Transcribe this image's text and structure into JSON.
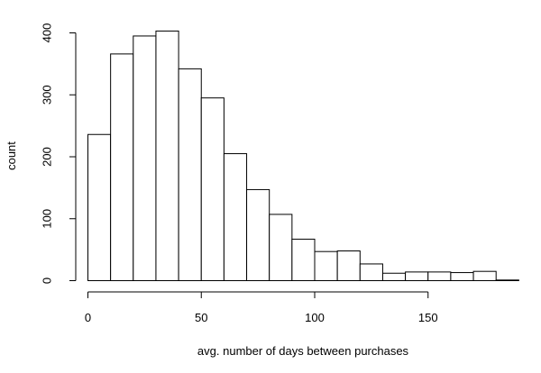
{
  "chart_data": {
    "type": "bar",
    "title": "",
    "xlabel": "avg. number of days between purchases",
    "ylabel": "count",
    "bin_width": 10,
    "bins": [
      {
        "x0": 0,
        "x1": 10,
        "count": 236
      },
      {
        "x0": 10,
        "x1": 20,
        "count": 366
      },
      {
        "x0": 20,
        "x1": 30,
        "count": 395
      },
      {
        "x0": 30,
        "x1": 40,
        "count": 403
      },
      {
        "x0": 40,
        "x1": 50,
        "count": 342
      },
      {
        "x0": 50,
        "x1": 60,
        "count": 295
      },
      {
        "x0": 60,
        "x1": 70,
        "count": 205
      },
      {
        "x0": 70,
        "x1": 80,
        "count": 147
      },
      {
        "x0": 80,
        "x1": 90,
        "count": 107
      },
      {
        "x0": 90,
        "x1": 100,
        "count": 67
      },
      {
        "x0": 100,
        "x1": 110,
        "count": 47
      },
      {
        "x0": 110,
        "x1": 120,
        "count": 48
      },
      {
        "x0": 120,
        "x1": 130,
        "count": 27
      },
      {
        "x0": 130,
        "x1": 140,
        "count": 12
      },
      {
        "x0": 140,
        "x1": 150,
        "count": 14
      },
      {
        "x0": 150,
        "x1": 160,
        "count": 14
      },
      {
        "x0": 160,
        "x1": 170,
        "count": 13
      },
      {
        "x0": 170,
        "x1": 180,
        "count": 15
      },
      {
        "x0": 180,
        "x1": 190,
        "count": 1
      }
    ],
    "xlim": [
      0,
      190
    ],
    "ylim": [
      0,
      400
    ],
    "x_ticks": [
      "0",
      "50",
      "100",
      "150"
    ],
    "y_ticks": [
      "0",
      "100",
      "200",
      "300",
      "400"
    ],
    "grid": false,
    "fill_color": "#ffffff",
    "stroke_color": "#000000"
  }
}
